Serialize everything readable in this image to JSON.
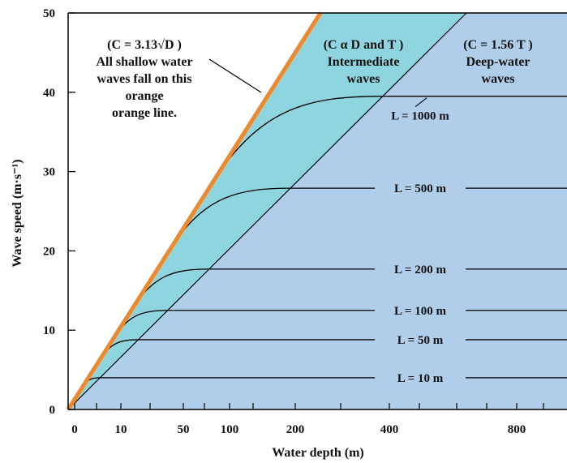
{
  "chart_data": {
    "type": "line",
    "title": "",
    "xlabel": "Water depth (m)",
    "ylabel": "Wave speed (m·s⁻¹)",
    "ylim": [
      0,
      50
    ],
    "y_ticks": [
      "0",
      "10",
      "20",
      "30",
      "40",
      "50"
    ],
    "x_ticks": [
      "0",
      "10",
      "50",
      "100",
      "200",
      "400",
      "800"
    ],
    "x_tick_values": [
      0,
      10,
      50,
      100,
      200,
      400,
      800
    ],
    "colors": {
      "shallow_line": "#ef8a2c",
      "intermediate_region": "#8fd5e0",
      "deep_region": "#b0cdea",
      "lines": "#000000"
    },
    "annotations": {
      "shallow": [
        "(C = 3.13√D )",
        "All shallow water",
        "waves fall on this",
        "orange",
        "orange line."
      ],
      "intermediate": [
        "(C α D and T )",
        "Intermediate",
        "waves"
      ],
      "deep": [
        "(C = 1.56 T )",
        "Deep-water",
        "waves"
      ]
    },
    "series": [
      {
        "name": "L = 1000 m",
        "deep_speed": 39.5
      },
      {
        "name": "L = 500 m",
        "deep_speed": 27.9
      },
      {
        "name": "L = 200 m",
        "deep_speed": 17.7
      },
      {
        "name": "L = 100 m",
        "deep_speed": 12.5
      },
      {
        "name": "L = 50 m",
        "deep_speed": 8.8
      },
      {
        "name": "L = 10 m",
        "deep_speed": 4.0
      }
    ]
  }
}
